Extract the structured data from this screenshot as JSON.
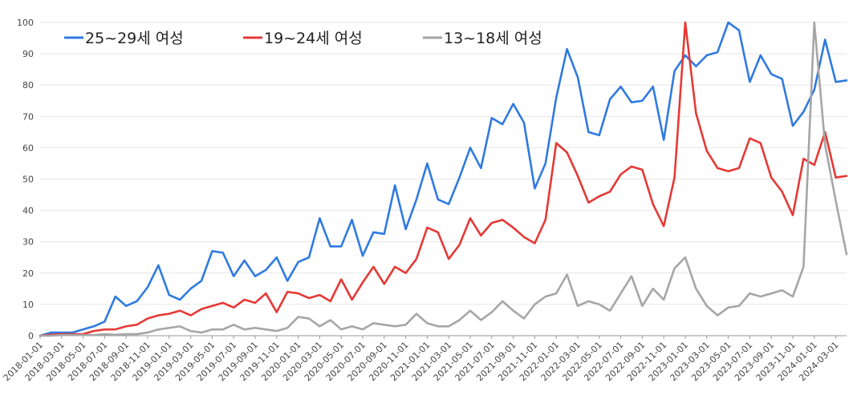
{
  "chart_data": {
    "type": "line",
    "title": "",
    "xlabel": "",
    "ylabel": "",
    "ylim": [
      0,
      100
    ],
    "yticks": [
      0,
      10,
      20,
      30,
      40,
      50,
      60,
      70,
      80,
      90,
      100
    ],
    "grid": true,
    "legend_position": "top-left",
    "x": [
      "2018-01-01",
      "2018-02-01",
      "2018-03-01",
      "2018-04-01",
      "2018-05-01",
      "2018-06-01",
      "2018-07-01",
      "2018-08-01",
      "2018-09-01",
      "2018-10-01",
      "2018-11-01",
      "2018-12-01",
      "2019-01-01",
      "2019-02-01",
      "2019-03-01",
      "2019-04-01",
      "2019-05-01",
      "2019-06-01",
      "2019-07-01",
      "2019-08-01",
      "2019-09-01",
      "2019-10-01",
      "2019-11-01",
      "2019-12-01",
      "2020-01-01",
      "2020-02-01",
      "2020-03-01",
      "2020-04-01",
      "2020-05-01",
      "2020-06-01",
      "2020-07-01",
      "2020-08-01",
      "2020-09-01",
      "2020-10-01",
      "2020-11-01",
      "2020-12-01",
      "2021-01-01",
      "2021-02-01",
      "2021-03-01",
      "2021-04-01",
      "2021-05-01",
      "2021-06-01",
      "2021-07-01",
      "2021-08-01",
      "2021-09-01",
      "2021-10-01",
      "2021-11-01",
      "2021-12-01",
      "2022-01-01",
      "2022-02-01",
      "2022-03-01",
      "2022-04-01",
      "2022-05-01",
      "2022-06-01",
      "2022-07-01",
      "2022-08-01",
      "2022-09-01",
      "2022-10-01",
      "2022-11-01",
      "2022-12-01",
      "2023-01-01",
      "2023-02-01",
      "2023-03-01",
      "2023-04-01",
      "2023-05-01",
      "2023-06-01",
      "2023-07-01",
      "2023-08-01",
      "2023-09-01",
      "2023-10-01",
      "2023-11-01",
      "2023-12-01",
      "2024-01-01",
      "2024-02-01",
      "2024-03-01",
      "2024-04-01"
    ],
    "x_tick_labels": [
      "2018-01-01",
      "2018-03-01",
      "2018-05-01",
      "2018-07-01",
      "2018-09-01",
      "2018-11-01",
      "2019-01-01",
      "2019-03-01",
      "2019-05-01",
      "2019-07-01",
      "2019-09-01",
      "2019-11-01",
      "2020-01-01",
      "2020-03-01",
      "2020-05-01",
      "2020-07-01",
      "2020-09-01",
      "2020-11-01",
      "2021-01-01",
      "2021-03-01",
      "2021-05-01",
      "2021-07-01",
      "2021-09-01",
      "2021-11-01",
      "2022-01-01",
      "2022-03-01",
      "2022-05-01",
      "2022-07-01",
      "2022-09-01",
      "2022-11-01",
      "2023-01-01",
      "2023-03-01",
      "2023-05-01",
      "2023-07-01",
      "2023-09-01",
      "2023-11-01",
      "2024-01-01",
      "2024-03-01"
    ],
    "series": [
      {
        "name": "25~29세 여성",
        "color": "#2f7ae0",
        "values": [
          0,
          1,
          1,
          1,
          2,
          3,
          4.5,
          12.5,
          9.5,
          11,
          15.5,
          22.5,
          13,
          11.5,
          15,
          17.5,
          27,
          26.5,
          19,
          24,
          19,
          21,
          25,
          17.5,
          23.5,
          25,
          37.5,
          28.5,
          28.5,
          37,
          25.5,
          33,
          32.5,
          48,
          34,
          43.5,
          55,
          43.5,
          42,
          50.5,
          60,
          53.5,
          69.5,
          67.5,
          74,
          68,
          47,
          55,
          76,
          91.5,
          82.5,
          65,
          64,
          75.5,
          79.5,
          74.5,
          75,
          79.5,
          62.5,
          84.5,
          89.5,
          86,
          89.5,
          90.5,
          100,
          97.5,
          81,
          89.5,
          83.5,
          82,
          67,
          71.5,
          78.5,
          94.5,
          81,
          81.5
        ]
      },
      {
        "name": "19~24세 여성",
        "color": "#e53935",
        "values": [
          0,
          0.3,
          0.5,
          0.5,
          0.5,
          1.5,
          2,
          2,
          3,
          3.5,
          5.5,
          6.5,
          7,
          8,
          6.5,
          8.5,
          9.5,
          10.5,
          9,
          11.5,
          10.5,
          13.5,
          7.5,
          14,
          13.5,
          12,
          13,
          11,
          18,
          11.5,
          17,
          22,
          16.5,
          22,
          20,
          24.5,
          34.5,
          33,
          24.5,
          29,
          37.5,
          32,
          36,
          37,
          34.5,
          31.5,
          29.5,
          37,
          61.5,
          58.5,
          51,
          42.5,
          44.5,
          46,
          51.5,
          54,
          53,
          42,
          35,
          50.5,
          100,
          71,
          59,
          53.5,
          52.5,
          53.5,
          63,
          61.5,
          50.5,
          46,
          38.5,
          56.5,
          54.5,
          65,
          50.5,
          51
        ]
      },
      {
        "name": "13~18세 여성",
        "color": "#a6a6a6",
        "values": [
          0,
          0,
          0.2,
          0.2,
          0.2,
          0.2,
          0.5,
          0.3,
          0.5,
          0.5,
          1,
          2,
          2.5,
          3,
          1.5,
          1,
          2,
          2,
          3.5,
          2,
          2.5,
          2,
          1.5,
          2.5,
          6,
          5.5,
          3,
          5,
          2,
          3,
          2,
          4,
          3.5,
          3,
          3.5,
          7,
          4,
          3,
          3,
          5,
          8,
          5,
          7.5,
          11,
          8,
          5.5,
          10,
          12.5,
          13.5,
          19.5,
          9.5,
          11,
          10,
          8,
          13.5,
          19,
          9.5,
          15,
          11.5,
          21.5,
          25,
          15,
          9.5,
          6.5,
          9,
          9.5,
          13.5,
          12.5,
          13.5,
          14.5,
          12.5,
          22,
          100,
          61,
          43,
          26
        ]
      }
    ]
  }
}
